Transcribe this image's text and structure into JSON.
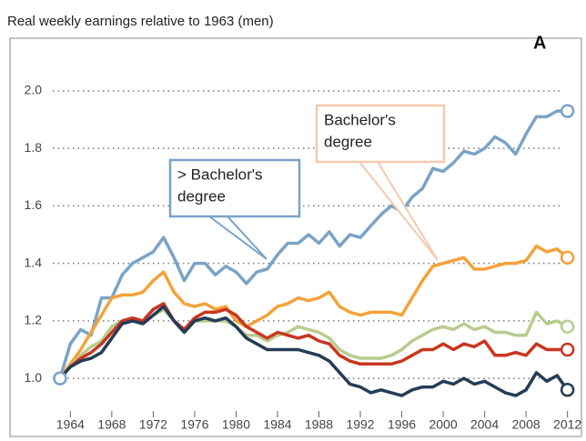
{
  "chart_data": {
    "type": "line",
    "title": "Real weekly earnings relative to 1963 (men)",
    "panel_label": "A",
    "x": [
      1963,
      1964,
      1965,
      1966,
      1967,
      1968,
      1969,
      1970,
      1971,
      1972,
      1973,
      1974,
      1975,
      1976,
      1977,
      1978,
      1979,
      1980,
      1981,
      1982,
      1983,
      1984,
      1985,
      1986,
      1987,
      1988,
      1989,
      1990,
      1991,
      1992,
      1993,
      1994,
      1995,
      1996,
      1997,
      1998,
      1999,
      2000,
      2001,
      2002,
      2003,
      2004,
      2005,
      2006,
      2007,
      2008,
      2009,
      2010,
      2011,
      2012
    ],
    "series": [
      {
        "color": "#7aa3c6",
        "values": [
          1.0,
          1.12,
          1.17,
          1.15,
          1.28,
          1.28,
          1.36,
          1.4,
          1.42,
          1.44,
          1.49,
          1.42,
          1.34,
          1.4,
          1.4,
          1.36,
          1.39,
          1.37,
          1.33,
          1.37,
          1.38,
          1.43,
          1.47,
          1.47,
          1.5,
          1.47,
          1.51,
          1.46,
          1.5,
          1.49,
          1.53,
          1.57,
          1.6,
          1.58,
          1.63,
          1.66,
          1.73,
          1.72,
          1.75,
          1.79,
          1.78,
          1.8,
          1.84,
          1.82,
          1.78,
          1.85,
          1.91,
          1.91,
          1.93,
          1.93
        ]
      },
      {
        "color": "#f3a23a",
        "values": [
          1.0,
          1.05,
          1.1,
          1.16,
          1.22,
          1.28,
          1.29,
          1.29,
          1.3,
          1.34,
          1.37,
          1.3,
          1.26,
          1.25,
          1.26,
          1.24,
          1.25,
          1.2,
          1.18,
          1.2,
          1.22,
          1.25,
          1.26,
          1.28,
          1.27,
          1.28,
          1.3,
          1.25,
          1.23,
          1.22,
          1.23,
          1.23,
          1.23,
          1.22,
          1.28,
          1.34,
          1.39,
          1.4,
          1.41,
          1.42,
          1.38,
          1.38,
          1.39,
          1.4,
          1.4,
          1.41,
          1.46,
          1.44,
          1.45,
          1.42
        ]
      },
      {
        "color": "#b8cc8e",
        "values": [
          1.0,
          1.04,
          1.08,
          1.11,
          1.13,
          1.18,
          1.2,
          1.2,
          1.19,
          1.22,
          1.24,
          1.2,
          1.16,
          1.2,
          1.2,
          1.2,
          1.2,
          1.18,
          1.15,
          1.15,
          1.13,
          1.15,
          1.16,
          1.18,
          1.17,
          1.16,
          1.14,
          1.1,
          1.08,
          1.07,
          1.07,
          1.07,
          1.08,
          1.1,
          1.13,
          1.15,
          1.17,
          1.18,
          1.17,
          1.19,
          1.17,
          1.18,
          1.16,
          1.16,
          1.15,
          1.15,
          1.23,
          1.19,
          1.2,
          1.18
        ]
      },
      {
        "color": "#c9361f",
        "values": [
          1.0,
          1.04,
          1.07,
          1.09,
          1.12,
          1.16,
          1.2,
          1.21,
          1.2,
          1.24,
          1.26,
          1.2,
          1.17,
          1.21,
          1.23,
          1.23,
          1.24,
          1.22,
          1.18,
          1.16,
          1.14,
          1.16,
          1.15,
          1.14,
          1.15,
          1.13,
          1.12,
          1.08,
          1.06,
          1.05,
          1.05,
          1.05,
          1.05,
          1.06,
          1.08,
          1.1,
          1.1,
          1.12,
          1.1,
          1.12,
          1.11,
          1.13,
          1.08,
          1.08,
          1.09,
          1.08,
          1.12,
          1.1,
          1.1,
          1.1
        ]
      },
      {
        "color": "#243c56",
        "values": [
          1.0,
          1.04,
          1.06,
          1.07,
          1.09,
          1.14,
          1.19,
          1.2,
          1.19,
          1.22,
          1.25,
          1.2,
          1.16,
          1.2,
          1.21,
          1.2,
          1.21,
          1.18,
          1.14,
          1.12,
          1.1,
          1.1,
          1.1,
          1.1,
          1.09,
          1.08,
          1.06,
          1.02,
          0.98,
          0.97,
          0.95,
          0.96,
          0.95,
          0.94,
          0.96,
          0.97,
          0.97,
          0.99,
          0.98,
          1.0,
          0.98,
          0.99,
          0.97,
          0.95,
          0.94,
          0.96,
          1.02,
          0.99,
          1.01,
          0.96
        ]
      }
    ],
    "annotations": [
      {
        "lines": [
          "> Bachelor's",
          "degree"
        ]
      },
      {
        "lines": [
          "Bachelor's",
          "degree"
        ]
      }
    ],
    "xlim": [
      1962.3,
      2013
    ],
    "xticks": [
      1964,
      1968,
      1972,
      1976,
      1980,
      1984,
      1988,
      1992,
      1996,
      2000,
      2004,
      2008,
      2012
    ],
    "ylim": [
      0.877,
      2.158
    ],
    "yticks": [
      {
        "value": 1,
        "label": "1.0"
      },
      1.2,
      1.4,
      1.6,
      1.8,
      {
        "value": 2,
        "label": "2.0"
      }
    ],
    "grid": true
  }
}
